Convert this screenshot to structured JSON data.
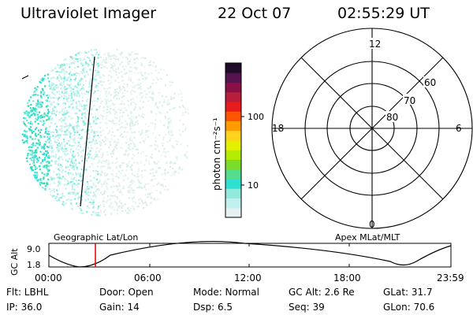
{
  "header": {
    "title": "Ultraviolet Imager",
    "date": "22 Oct 07",
    "time": "02:55:29 UT"
  },
  "colorbar": {
    "unit_label": "photon cm⁻²s⁻¹",
    "tick_labels": [
      "100",
      "10"
    ],
    "colors": [
      "#e6f2f2",
      "#bff0ee",
      "#8feadc",
      "#2ee0d0",
      "#55dc8c",
      "#7cdc2a",
      "#b6ec00",
      "#e4f000",
      "#ffd21e",
      "#ff9b00",
      "#ff5500",
      "#e81c1c",
      "#b81e3c",
      "#8a1046",
      "#56124e",
      "#1e0c28"
    ]
  },
  "polar_grid": {
    "mlt_labels": [
      "12",
      "18",
      "6",
      "0"
    ],
    "lat_labels": [
      "60",
      "70",
      "80"
    ]
  },
  "orbit_panel": {
    "left_caption": "Geographic Lat/Lon",
    "right_caption": "Apex  MLat/MLT",
    "y_axis_label": "GC Alt",
    "y_ticks": [
      "9.0",
      "1.8"
    ],
    "x_ticks": [
      "00:00",
      "06:00",
      "12:00",
      "18:00",
      "23:59"
    ]
  },
  "info": {
    "row1": {
      "filter": "Flt: LBHL",
      "door": "Door: Open",
      "mode": "Mode: Normal",
      "gc_alt": "GC Alt: 2.6 Re",
      "glat": "GLat:  31.7"
    },
    "row2": {
      "ip": "IP: 36.0",
      "gain": "Gain: 14",
      "dsp": "Dsp:     6.5",
      "seq": "Seq: 39",
      "glon": "GLon:  70.6"
    }
  }
}
